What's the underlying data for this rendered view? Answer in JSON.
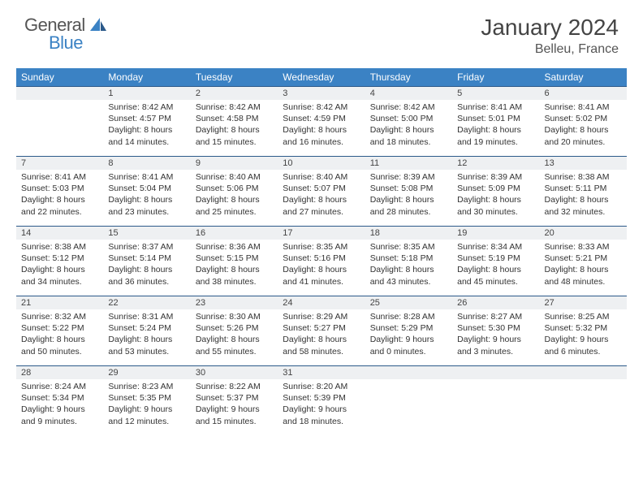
{
  "logo": {
    "general": "General",
    "blue": "Blue"
  },
  "title": "January 2024",
  "location": "Belleu, France",
  "weekdays": [
    "Sunday",
    "Monday",
    "Tuesday",
    "Wednesday",
    "Thursday",
    "Friday",
    "Saturday"
  ],
  "colors": {
    "header_bg": "#3b82c4",
    "header_text": "#ffffff",
    "daynum_bg": "#eef0f2",
    "daynum_border": "#2c5a8a",
    "text": "#333333"
  },
  "weeks": [
    [
      {
        "num": "",
        "sunrise": "",
        "sunset": "",
        "daylight": ""
      },
      {
        "num": "1",
        "sunrise": "Sunrise: 8:42 AM",
        "sunset": "Sunset: 4:57 PM",
        "daylight": "Daylight: 8 hours and 14 minutes."
      },
      {
        "num": "2",
        "sunrise": "Sunrise: 8:42 AM",
        "sunset": "Sunset: 4:58 PM",
        "daylight": "Daylight: 8 hours and 15 minutes."
      },
      {
        "num": "3",
        "sunrise": "Sunrise: 8:42 AM",
        "sunset": "Sunset: 4:59 PM",
        "daylight": "Daylight: 8 hours and 16 minutes."
      },
      {
        "num": "4",
        "sunrise": "Sunrise: 8:42 AM",
        "sunset": "Sunset: 5:00 PM",
        "daylight": "Daylight: 8 hours and 18 minutes."
      },
      {
        "num": "5",
        "sunrise": "Sunrise: 8:41 AM",
        "sunset": "Sunset: 5:01 PM",
        "daylight": "Daylight: 8 hours and 19 minutes."
      },
      {
        "num": "6",
        "sunrise": "Sunrise: 8:41 AM",
        "sunset": "Sunset: 5:02 PM",
        "daylight": "Daylight: 8 hours and 20 minutes."
      }
    ],
    [
      {
        "num": "7",
        "sunrise": "Sunrise: 8:41 AM",
        "sunset": "Sunset: 5:03 PM",
        "daylight": "Daylight: 8 hours and 22 minutes."
      },
      {
        "num": "8",
        "sunrise": "Sunrise: 8:41 AM",
        "sunset": "Sunset: 5:04 PM",
        "daylight": "Daylight: 8 hours and 23 minutes."
      },
      {
        "num": "9",
        "sunrise": "Sunrise: 8:40 AM",
        "sunset": "Sunset: 5:06 PM",
        "daylight": "Daylight: 8 hours and 25 minutes."
      },
      {
        "num": "10",
        "sunrise": "Sunrise: 8:40 AM",
        "sunset": "Sunset: 5:07 PM",
        "daylight": "Daylight: 8 hours and 27 minutes."
      },
      {
        "num": "11",
        "sunrise": "Sunrise: 8:39 AM",
        "sunset": "Sunset: 5:08 PM",
        "daylight": "Daylight: 8 hours and 28 minutes."
      },
      {
        "num": "12",
        "sunrise": "Sunrise: 8:39 AM",
        "sunset": "Sunset: 5:09 PM",
        "daylight": "Daylight: 8 hours and 30 minutes."
      },
      {
        "num": "13",
        "sunrise": "Sunrise: 8:38 AM",
        "sunset": "Sunset: 5:11 PM",
        "daylight": "Daylight: 8 hours and 32 minutes."
      }
    ],
    [
      {
        "num": "14",
        "sunrise": "Sunrise: 8:38 AM",
        "sunset": "Sunset: 5:12 PM",
        "daylight": "Daylight: 8 hours and 34 minutes."
      },
      {
        "num": "15",
        "sunrise": "Sunrise: 8:37 AM",
        "sunset": "Sunset: 5:14 PM",
        "daylight": "Daylight: 8 hours and 36 minutes."
      },
      {
        "num": "16",
        "sunrise": "Sunrise: 8:36 AM",
        "sunset": "Sunset: 5:15 PM",
        "daylight": "Daylight: 8 hours and 38 minutes."
      },
      {
        "num": "17",
        "sunrise": "Sunrise: 8:35 AM",
        "sunset": "Sunset: 5:16 PM",
        "daylight": "Daylight: 8 hours and 41 minutes."
      },
      {
        "num": "18",
        "sunrise": "Sunrise: 8:35 AM",
        "sunset": "Sunset: 5:18 PM",
        "daylight": "Daylight: 8 hours and 43 minutes."
      },
      {
        "num": "19",
        "sunrise": "Sunrise: 8:34 AM",
        "sunset": "Sunset: 5:19 PM",
        "daylight": "Daylight: 8 hours and 45 minutes."
      },
      {
        "num": "20",
        "sunrise": "Sunrise: 8:33 AM",
        "sunset": "Sunset: 5:21 PM",
        "daylight": "Daylight: 8 hours and 48 minutes."
      }
    ],
    [
      {
        "num": "21",
        "sunrise": "Sunrise: 8:32 AM",
        "sunset": "Sunset: 5:22 PM",
        "daylight": "Daylight: 8 hours and 50 minutes."
      },
      {
        "num": "22",
        "sunrise": "Sunrise: 8:31 AM",
        "sunset": "Sunset: 5:24 PM",
        "daylight": "Daylight: 8 hours and 53 minutes."
      },
      {
        "num": "23",
        "sunrise": "Sunrise: 8:30 AM",
        "sunset": "Sunset: 5:26 PM",
        "daylight": "Daylight: 8 hours and 55 minutes."
      },
      {
        "num": "24",
        "sunrise": "Sunrise: 8:29 AM",
        "sunset": "Sunset: 5:27 PM",
        "daylight": "Daylight: 8 hours and 58 minutes."
      },
      {
        "num": "25",
        "sunrise": "Sunrise: 8:28 AM",
        "sunset": "Sunset: 5:29 PM",
        "daylight": "Daylight: 9 hours and 0 minutes."
      },
      {
        "num": "26",
        "sunrise": "Sunrise: 8:27 AM",
        "sunset": "Sunset: 5:30 PM",
        "daylight": "Daylight: 9 hours and 3 minutes."
      },
      {
        "num": "27",
        "sunrise": "Sunrise: 8:25 AM",
        "sunset": "Sunset: 5:32 PM",
        "daylight": "Daylight: 9 hours and 6 minutes."
      }
    ],
    [
      {
        "num": "28",
        "sunrise": "Sunrise: 8:24 AM",
        "sunset": "Sunset: 5:34 PM",
        "daylight": "Daylight: 9 hours and 9 minutes."
      },
      {
        "num": "29",
        "sunrise": "Sunrise: 8:23 AM",
        "sunset": "Sunset: 5:35 PM",
        "daylight": "Daylight: 9 hours and 12 minutes."
      },
      {
        "num": "30",
        "sunrise": "Sunrise: 8:22 AM",
        "sunset": "Sunset: 5:37 PM",
        "daylight": "Daylight: 9 hours and 15 minutes."
      },
      {
        "num": "31",
        "sunrise": "Sunrise: 8:20 AM",
        "sunset": "Sunset: 5:39 PM",
        "daylight": "Daylight: 9 hours and 18 minutes."
      },
      {
        "num": "",
        "sunrise": "",
        "sunset": "",
        "daylight": ""
      },
      {
        "num": "",
        "sunrise": "",
        "sunset": "",
        "daylight": ""
      },
      {
        "num": "",
        "sunrise": "",
        "sunset": "",
        "daylight": ""
      }
    ]
  ]
}
